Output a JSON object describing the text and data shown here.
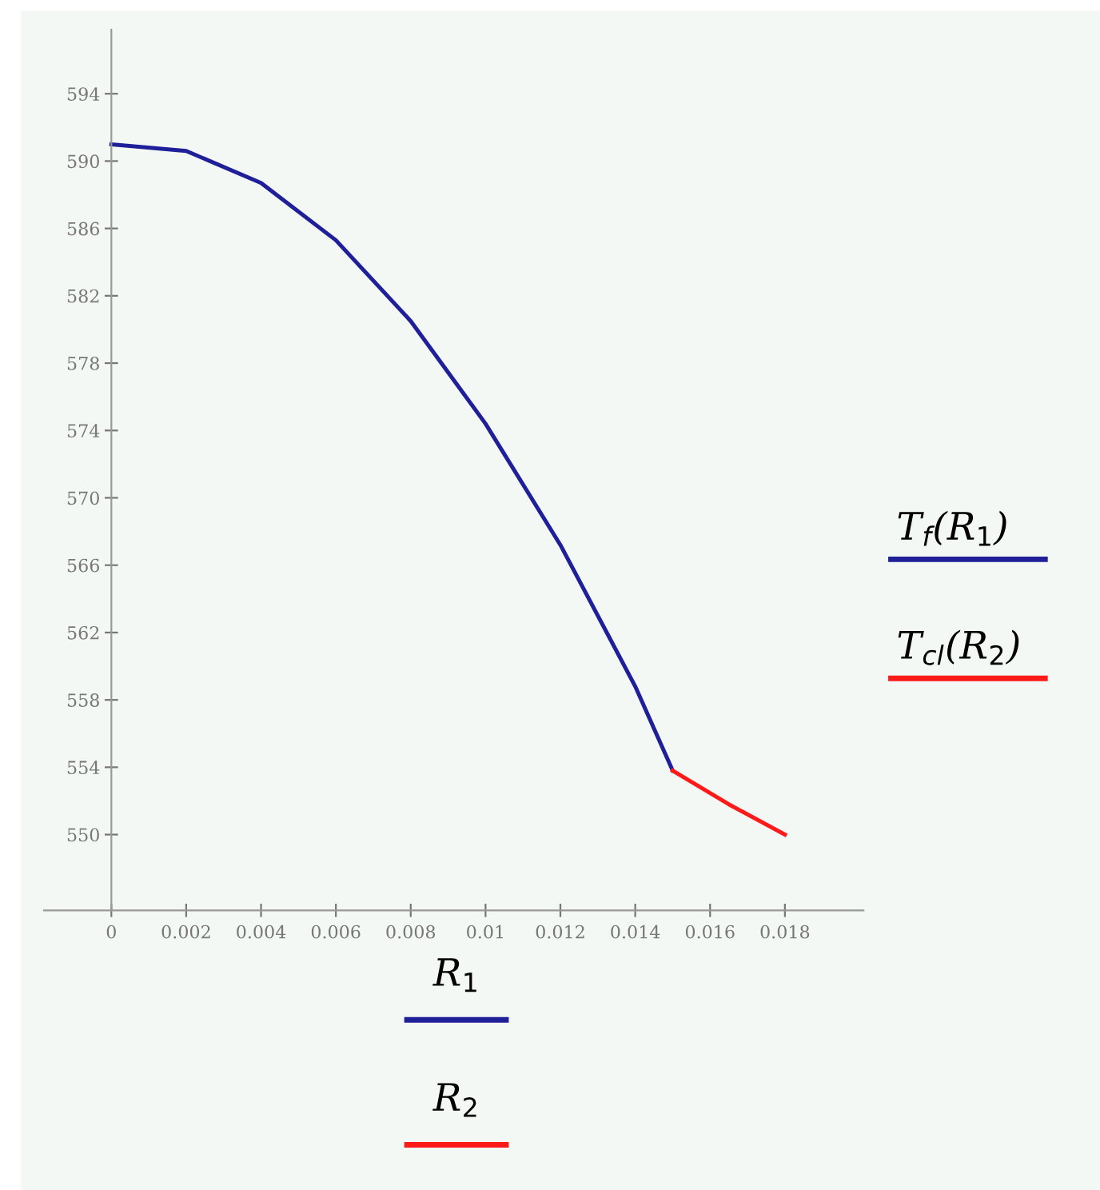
{
  "chart_data": {
    "type": "line",
    "xlabel": "R$_{1}$\nR$_{2}$",
    "legend": "right",
    "marker": "none",
    "line_style": "solid",
    "grid": false,
    "xlim": [
      -0.0018,
      0.0201
    ],
    "ylim": [
      545.5,
      597.8
    ],
    "xticks": [
      0,
      0.002,
      0.004,
      0.006,
      0.008,
      0.01,
      0.012,
      0.014,
      0.016,
      0.018
    ],
    "yticks": [
      550,
      554,
      558,
      562,
      566,
      570,
      574,
      578,
      582,
      586,
      590,
      594
    ],
    "series": [
      {
        "name": "T$_{f}$(R$_{1}$)",
        "color": "#1f1f9a",
        "x": [
          0,
          0.002,
          0.004,
          0.006,
          0.008,
          0.01,
          0.012,
          0.014,
          0.015
        ],
        "values": [
          591.0,
          590.6,
          588.7,
          585.3,
          580.5,
          574.4,
          567.2,
          558.8,
          553.8
        ]
      },
      {
        "name": "T$_{cl}$(R$_{2}$)",
        "color": "#ff1a1a",
        "x": [
          0.015,
          0.0165,
          0.018
        ],
        "values": [
          553.8,
          551.8,
          550.0
        ]
      }
    ]
  }
}
